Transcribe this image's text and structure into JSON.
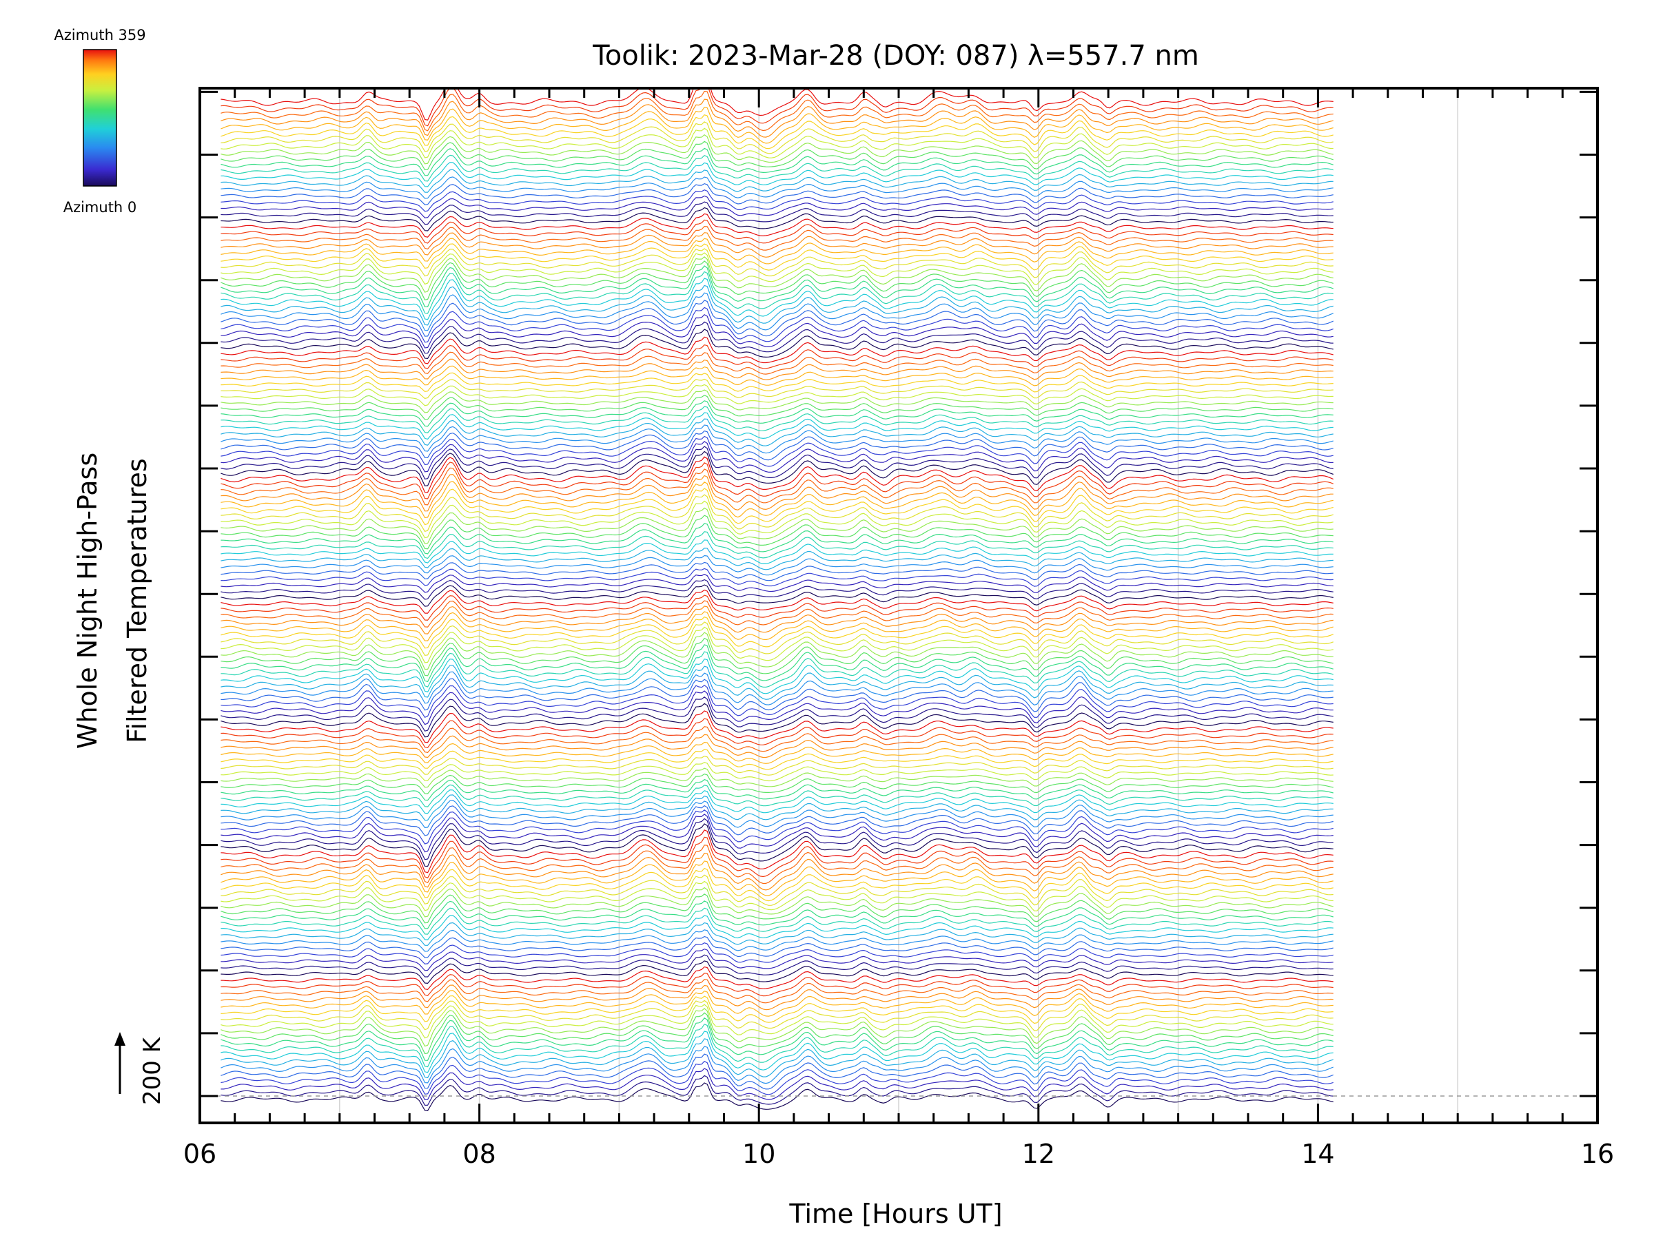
{
  "chart_data": {
    "type": "line",
    "title": "Toolik: 2023-Mar-28 (DOY: 087) λ=557.7 nm",
    "xlabel": "Time [Hours UT]",
    "ylabel_line1": "Whole Night High-Pass",
    "ylabel_line2": "Filtered Temperatures",
    "xlim": [
      6,
      16
    ],
    "x_ticks": [
      "06",
      "08",
      "10",
      "12",
      "14",
      "16"
    ],
    "data_range_hours": [
      6.15,
      14.12
    ],
    "scale_bar_label": "200 K",
    "colorbar": {
      "top_label": "Azimuth 359",
      "bottom_label": "Azimuth 0",
      "colormap": "rainbow",
      "colors": [
        "#1a0a5a",
        "#3a2ad0",
        "#2a8af0",
        "#20d0d8",
        "#40e070",
        "#c8f040",
        "#ffd020",
        "#ff7a10",
        "#e81010"
      ]
    },
    "stack": {
      "bands": 8,
      "traces": 160,
      "trace_order": "azimuth 0 to 359 per band, stacked bottom to top"
    },
    "grid": "vertical lines at every hour",
    "event_times_hours": [
      7.2,
      7.62,
      7.8,
      9.2,
      9.55,
      9.62,
      9.85,
      10.0,
      10.35,
      10.75,
      11.3,
      11.55,
      11.98,
      12.3,
      12.5
    ],
    "baseline_label": "dashed reference at 200 K"
  }
}
